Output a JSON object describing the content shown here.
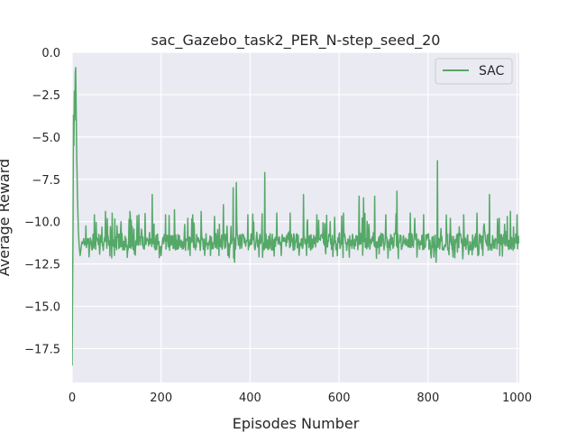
{
  "chart_data": {
    "type": "line",
    "title": "sac_Gazebo_task2_PER_N-step_seed_20",
    "xlabel": "Episodes Number",
    "ylabel": "Average Reward",
    "xlim": [
      0,
      1005
    ],
    "ylim": [
      -19.5,
      0
    ],
    "xticks": [
      0,
      200,
      400,
      600,
      800,
      1000
    ],
    "xtick_labels": [
      "0",
      "200",
      "400",
      "600",
      "800",
      "1000"
    ],
    "yticks": [
      0,
      -2.5,
      -5,
      -7.5,
      -10,
      -12.5,
      -15,
      -17.5
    ],
    "ytick_labels": [
      "0.0",
      "−2.5",
      "−5.0",
      "−7.5",
      "−10.0",
      "−12.5",
      "−15.0",
      "−17.5"
    ],
    "grid": true,
    "legend_position": "top-right",
    "series": [
      {
        "name": "SAC",
        "color": "#55a868",
        "baseline": -11.2,
        "x": [
          0,
          1,
          2,
          3,
          4,
          5,
          6,
          7,
          8,
          9,
          10,
          11,
          12,
          14,
          16,
          18,
          20,
          22,
          24,
          26,
          28,
          30
        ],
        "y": [
          -18.5,
          -14.0,
          -10.5,
          -3.7,
          -5.5,
          -2.3,
          -4.0,
          -1.2,
          -0.9,
          -3.0,
          -5.5,
          -7.0,
          -8.5,
          -10.5,
          -11.5,
          -12.0,
          -11.6,
          -11.2,
          -11.3,
          -11.0,
          -11.4,
          -11.2
        ],
        "spikes": [
          {
            "x": 50,
            "y": -9.6
          },
          {
            "x": 75,
            "y": -9.4
          },
          {
            "x": 90,
            "y": -9.5
          },
          {
            "x": 110,
            "y": -10.0
          },
          {
            "x": 130,
            "y": -9.4
          },
          {
            "x": 150,
            "y": -9.6
          },
          {
            "x": 180,
            "y": -8.4
          },
          {
            "x": 210,
            "y": -9.6
          },
          {
            "x": 230,
            "y": -9.3
          },
          {
            "x": 260,
            "y": -9.8
          },
          {
            "x": 290,
            "y": -9.4
          },
          {
            "x": 320,
            "y": -9.7
          },
          {
            "x": 340,
            "y": -9.0
          },
          {
            "x": 362,
            "y": -8.0
          },
          {
            "x": 369,
            "y": -7.7
          },
          {
            "x": 395,
            "y": -9.6
          },
          {
            "x": 433,
            "y": -7.1
          },
          {
            "x": 460,
            "y": -9.5
          },
          {
            "x": 490,
            "y": -9.5
          },
          {
            "x": 520,
            "y": -8.4
          },
          {
            "x": 550,
            "y": -9.6
          },
          {
            "x": 580,
            "y": -10.0
          },
          {
            "x": 610,
            "y": -9.5
          },
          {
            "x": 645,
            "y": -8.5
          },
          {
            "x": 655,
            "y": -8.6
          },
          {
            "x": 680,
            "y": -8.5
          },
          {
            "x": 705,
            "y": -9.6
          },
          {
            "x": 730,
            "y": -8.2
          },
          {
            "x": 760,
            "y": -9.5
          },
          {
            "x": 790,
            "y": -9.6
          },
          {
            "x": 821,
            "y": -6.4
          },
          {
            "x": 850,
            "y": -9.8
          },
          {
            "x": 880,
            "y": -9.6
          },
          {
            "x": 910,
            "y": -9.5
          },
          {
            "x": 938,
            "y": -8.4
          },
          {
            "x": 960,
            "y": -9.8
          },
          {
            "x": 985,
            "y": -9.4
          },
          {
            "x": 1000,
            "y": -9.6
          }
        ],
        "dips": [
          {
            "x": 95,
            "y": -12.0
          },
          {
            "x": 140,
            "y": -11.9
          },
          {
            "x": 200,
            "y": -12.0
          },
          {
            "x": 265,
            "y": -12.0
          },
          {
            "x": 311,
            "y": -12.0
          },
          {
            "x": 365,
            "y": -12.4
          },
          {
            "x": 470,
            "y": -12.0
          },
          {
            "x": 527,
            "y": -12.0
          },
          {
            "x": 570,
            "y": -11.9
          },
          {
            "x": 623,
            "y": -12.1
          },
          {
            "x": 690,
            "y": -11.9
          },
          {
            "x": 775,
            "y": -12.1
          },
          {
            "x": 818,
            "y": -12.4
          },
          {
            "x": 866,
            "y": -11.8
          },
          {
            "x": 923,
            "y": -12.0
          },
          {
            "x": 961,
            "y": -12.0
          }
        ]
      }
    ]
  }
}
